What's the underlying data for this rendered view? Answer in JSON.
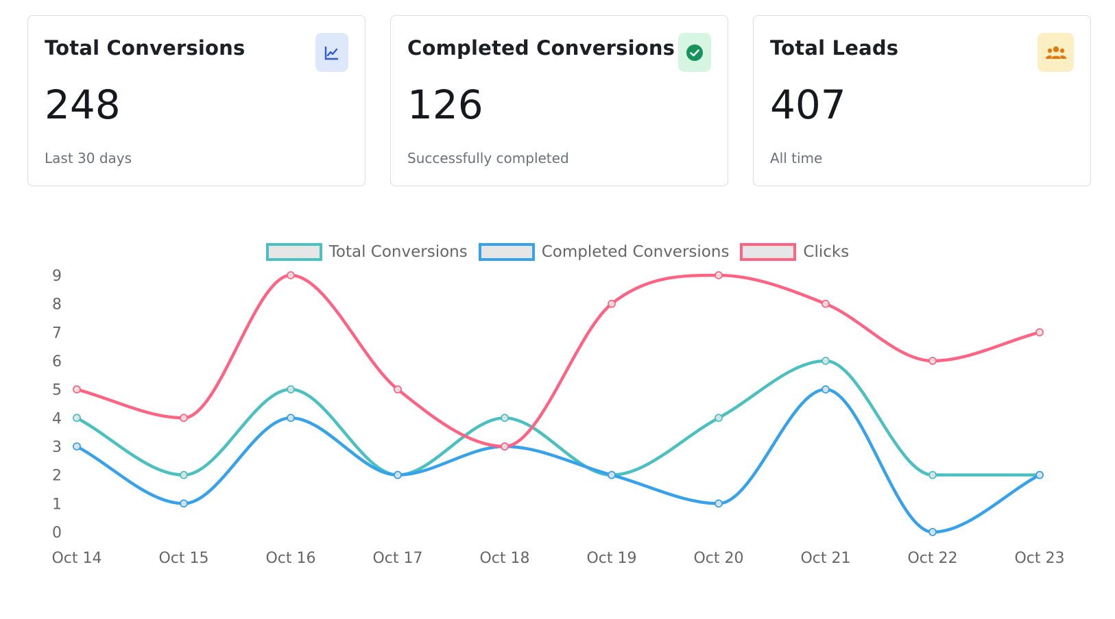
{
  "cards": [
    {
      "title": "Total Conversions",
      "value": "248",
      "subtitle": "Last 30 days",
      "icon": "line-chart-icon",
      "accent": "#2f5bd6"
    },
    {
      "title": "Completed Conversions",
      "value": "126",
      "subtitle": "Successfully completed",
      "icon": "check-circle-icon",
      "accent": "#15935a"
    },
    {
      "title": "Total Leads",
      "value": "407",
      "subtitle": "All time",
      "icon": "users-icon",
      "accent": "#e07a10"
    }
  ],
  "chart_data": {
    "type": "line",
    "x": [
      "Oct 14",
      "Oct 15",
      "Oct 16",
      "Oct 17",
      "Oct 18",
      "Oct 19",
      "Oct 20",
      "Oct 21",
      "Oct 22",
      "Oct 23"
    ],
    "ylim": [
      0,
      9
    ],
    "yticks": [
      0,
      1,
      2,
      3,
      4,
      5,
      6,
      7,
      8,
      9
    ],
    "legend": "top-center",
    "series": [
      {
        "name": "Total Conversions",
        "color": "#4bc0c0",
        "values": [
          4,
          2,
          5,
          2,
          4,
          2,
          4,
          6,
          2,
          2
        ]
      },
      {
        "name": "Completed Conversions",
        "color": "#36a2eb",
        "values": [
          3,
          1,
          4,
          2,
          3,
          2,
          1,
          5,
          0,
          2
        ]
      },
      {
        "name": "Clicks",
        "color": "#ff6384",
        "values": [
          5,
          4,
          9,
          5,
          3,
          8,
          9,
          8,
          6,
          7
        ]
      }
    ]
  }
}
